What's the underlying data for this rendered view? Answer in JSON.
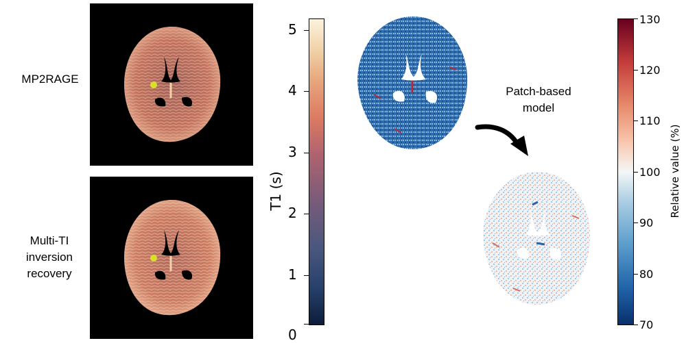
{
  "labels": {
    "mp2rage": "MP2RAGE",
    "multi_ti": [
      "Multi-TI",
      "inversion",
      "recovery"
    ],
    "patch_model": [
      "Patch-based",
      "model"
    ]
  },
  "t1_colorbar": {
    "title": "T1 (s)",
    "ticks": [
      "0",
      "1",
      "2",
      "3",
      "4",
      "5"
    ],
    "range": [
      0,
      5
    ]
  },
  "relative_colorbar": {
    "title": "Relative value (%)",
    "ticks": [
      "70",
      "80",
      "90",
      "100",
      "110",
      "120",
      "130"
    ],
    "range": [
      70,
      130
    ]
  },
  "colors": {
    "marker": "#d8e02a",
    "t1_map_tissue": "#c8775e",
    "relative_low": "#2a63a8",
    "relative_high": "#b42c35"
  }
}
